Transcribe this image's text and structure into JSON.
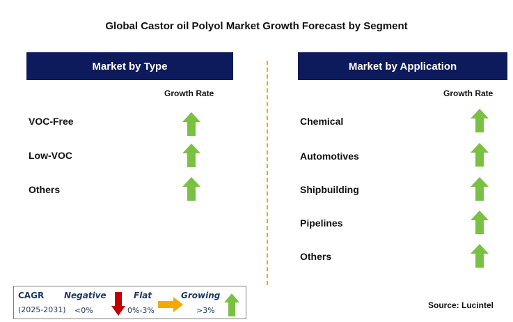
{
  "title": "Global Castor oil Polyol Market Growth Forecast by Segment",
  "left_panel": {
    "header": "Market by Type",
    "column_header": "Growth Rate",
    "rows": [
      {
        "label": "VOC-Free",
        "trend": "growing"
      },
      {
        "label": "Low-VOC",
        "trend": "growing"
      },
      {
        "label": "Others",
        "trend": "growing"
      }
    ]
  },
  "right_panel": {
    "header": "Market by Application",
    "column_header": "Growth Rate",
    "rows": [
      {
        "label": "Chemical",
        "trend": "growing"
      },
      {
        "label": "Automotives",
        "trend": "growing"
      },
      {
        "label": "Shipbuilding",
        "trend": "growing"
      },
      {
        "label": "Pipelines",
        "trend": "growing"
      },
      {
        "label": "Others",
        "trend": "growing"
      }
    ]
  },
  "legend": {
    "cagr_label": "CAGR",
    "period": "(2025-2031)",
    "negative_label": "Negative",
    "negative_range": "<0%",
    "flat_label": "Flat",
    "flat_range": "0%-3%",
    "growing_label": "Growing",
    "growing_range": ">3%"
  },
  "source": "Source: Lucintel",
  "colors": {
    "header_bg": "#0d1b5c",
    "growing_arrow": "#7ac143",
    "negative_arrow": "#c00000",
    "flat_arrow": "#f5a800",
    "divider": "#f5a800"
  },
  "icons": {
    "growing": "green-up-arrow-icon",
    "negative": "red-down-arrow-icon",
    "flat": "yellow-right-arrow-icon"
  }
}
